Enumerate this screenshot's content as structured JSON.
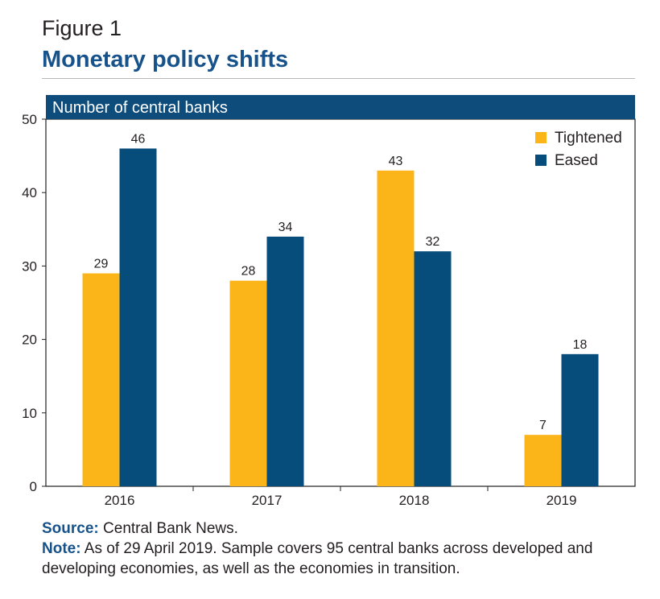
{
  "figure": {
    "label": "Figure 1",
    "title": "Monetary policy shifts"
  },
  "colors": {
    "tightened": "#fbb518",
    "eased": "#064d7c",
    "title": "#17538a",
    "header_band": "#0e4c7b"
  },
  "chart_data": {
    "type": "bar",
    "title": "Number of central banks",
    "categories": [
      "2016",
      "2017",
      "2018",
      "2019"
    ],
    "series": [
      {
        "name": "Tightened",
        "values": [
          29,
          28,
          43,
          7
        ]
      },
      {
        "name": "Eased",
        "values": [
          46,
          34,
          32,
          18
        ]
      }
    ],
    "ylim": [
      0,
      50
    ],
    "yticks": [
      "0",
      "10",
      "20",
      "30",
      "40",
      "50"
    ],
    "xlabel": "",
    "ylabel": "",
    "grid": false,
    "legend_position": "top-right"
  },
  "footer": {
    "source_label": "Source:",
    "source_text": "Central Bank News.",
    "note_label": "Note:",
    "note_text": "As of 29 April 2019. Sample covers 95 central banks across developed and developing economies, as well as the economies in transition."
  }
}
